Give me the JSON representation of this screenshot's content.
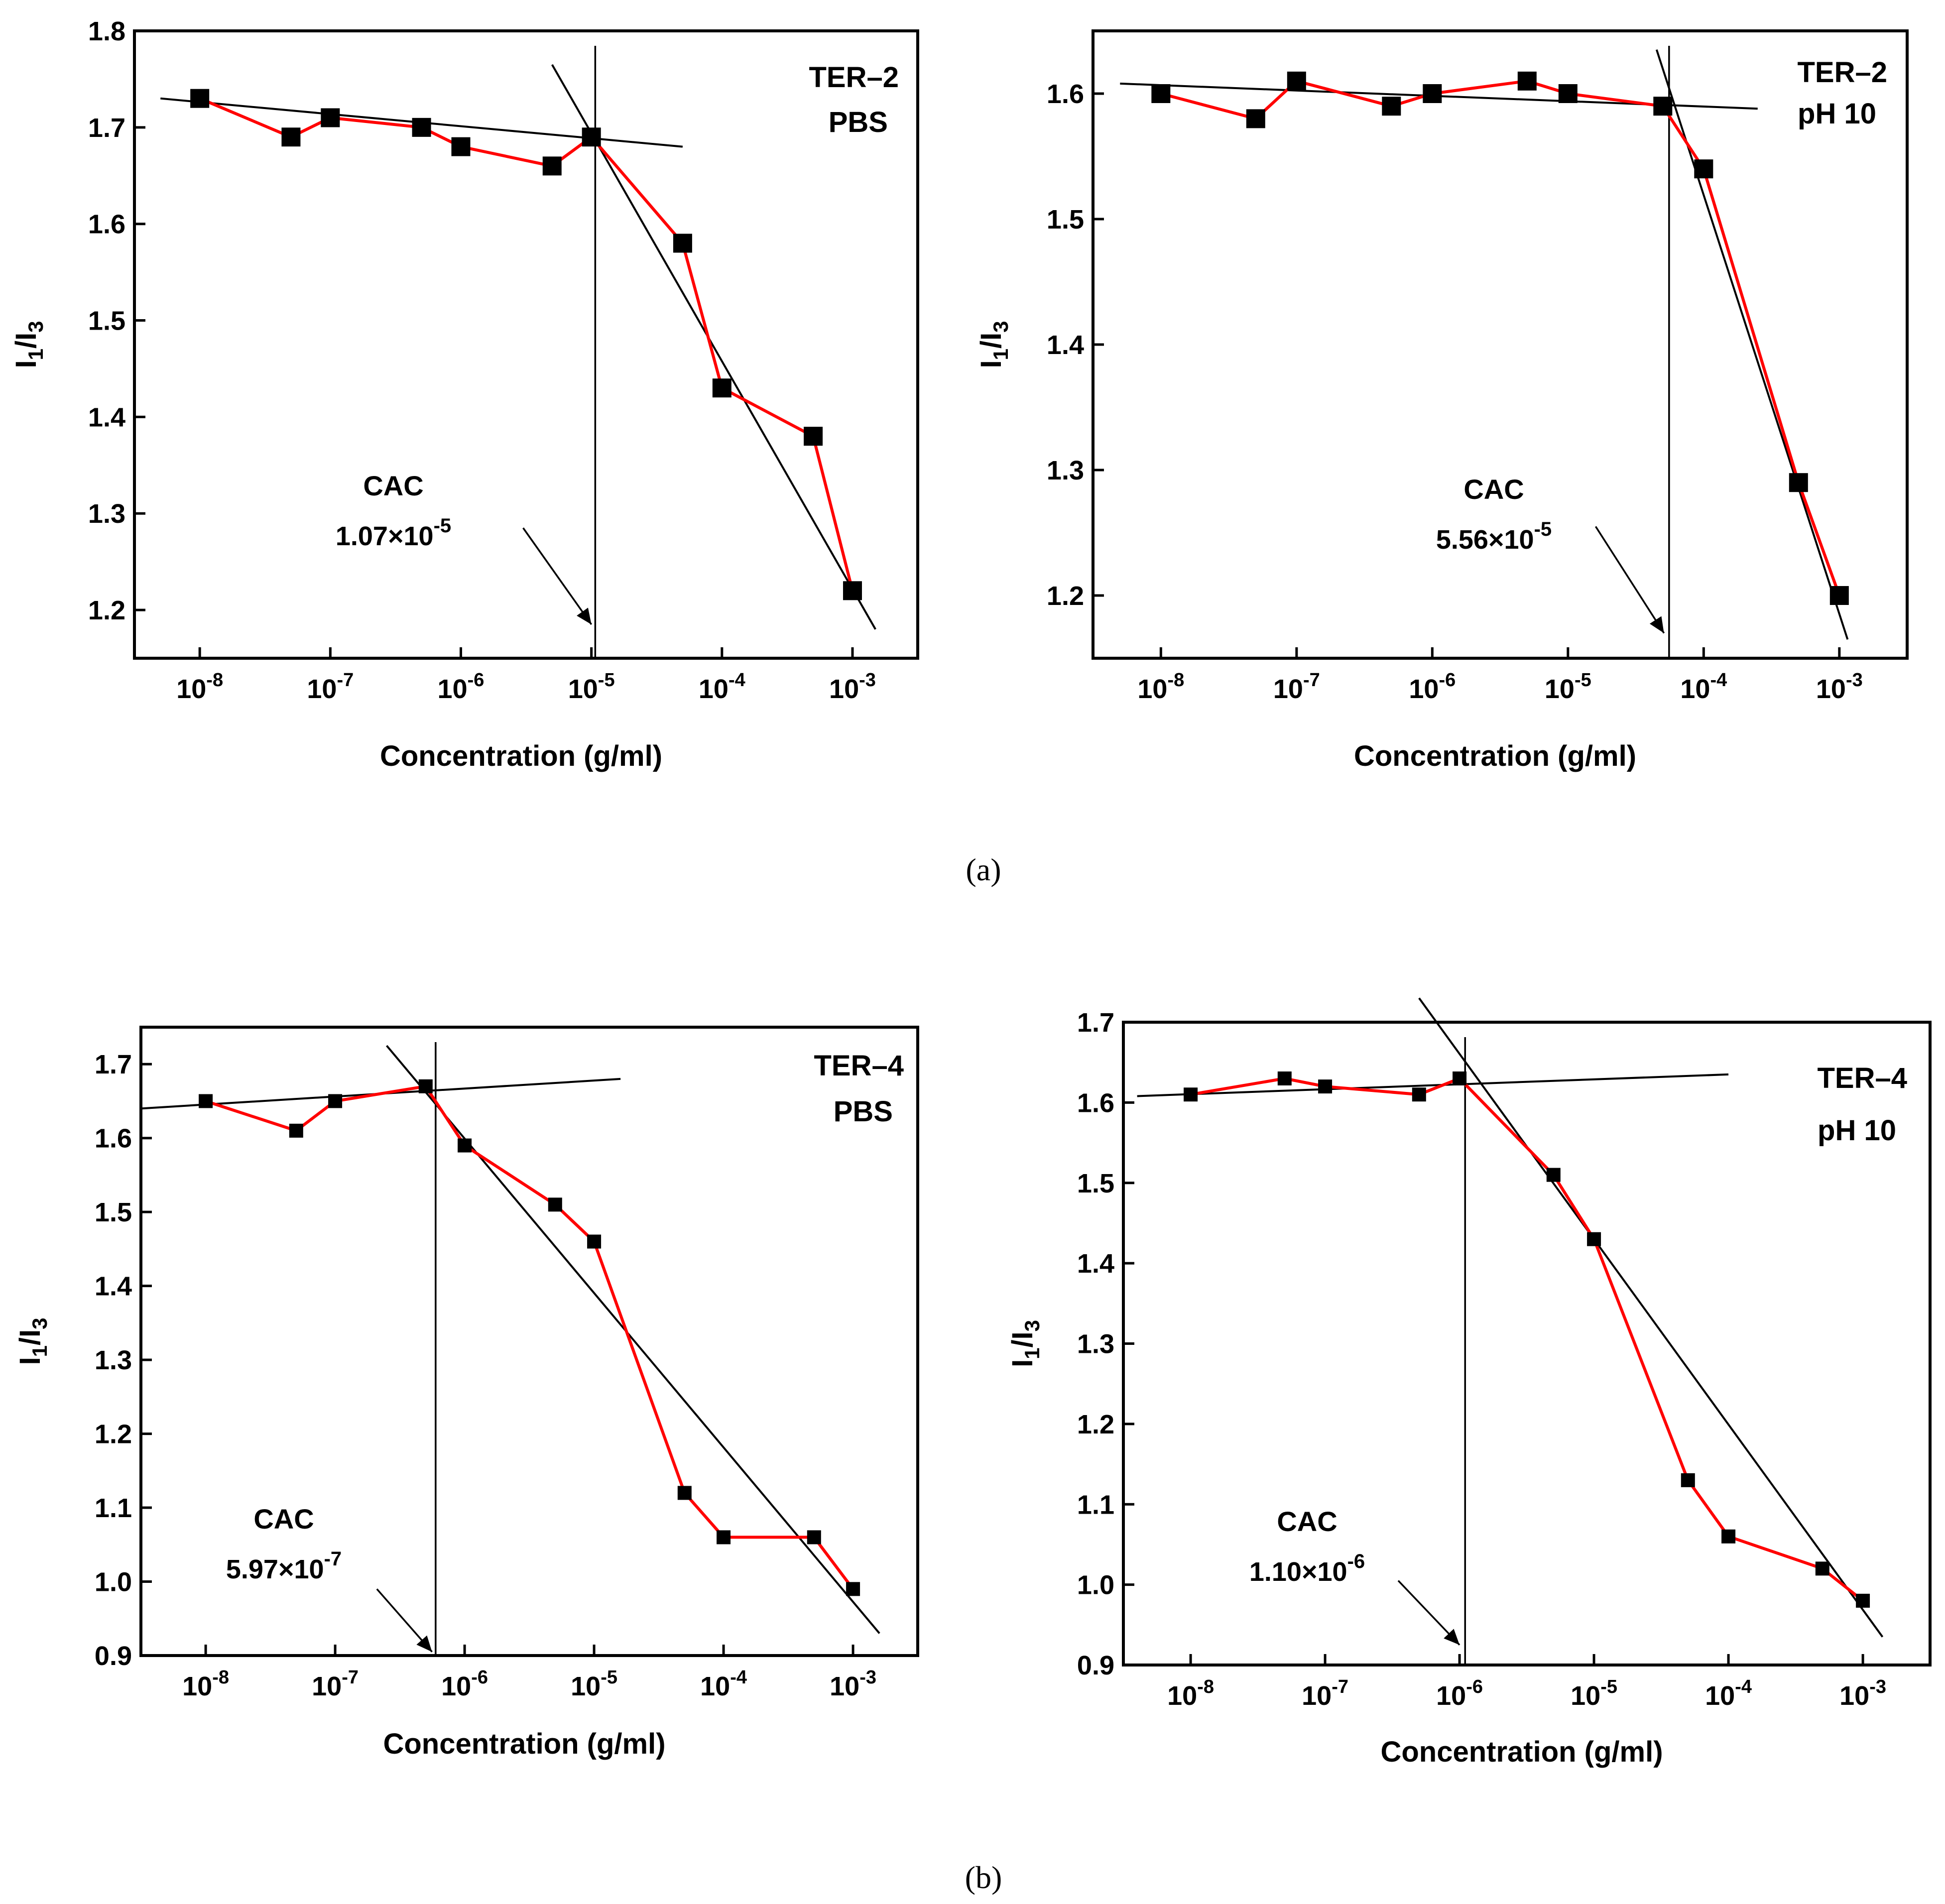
{
  "figure": {
    "caption_a": "(a)",
    "caption_b": "(b)"
  },
  "chart_data": [
    {
      "type": "line",
      "id": "a-left",
      "label_line1": "TER–2",
      "label_line2": "PBS",
      "xlabel": "Concentration (g/ml)",
      "ylabel": "I1/I3",
      "xscale": "log",
      "xlim": [
        3.16e-09,
        0.00316
      ],
      "ylim": [
        1.15,
        1.8
      ],
      "yticks": [
        1.2,
        1.3,
        1.4,
        1.5,
        1.6,
        1.7,
        1.8
      ],
      "ytick_labels": [
        "1.2",
        "1.3",
        "1.4",
        "1.5",
        "1.6",
        "1.7",
        "1.8"
      ],
      "xtick_exponents": [
        -8,
        -7,
        -6,
        -5,
        -4,
        -3
      ],
      "x": [
        1e-08,
        5e-08,
        1e-07,
        5e-07,
        1e-06,
        5e-06,
        1e-05,
        5e-05,
        0.0001,
        0.0005,
        0.001
      ],
      "y": [
        1.73,
        1.69,
        1.71,
        1.7,
        1.68,
        1.66,
        1.69,
        1.58,
        1.43,
        1.38,
        1.22
      ],
      "fit_lines": [
        {
          "x": [
            5e-09,
            5e-05
          ],
          "y": [
            1.73,
            1.68
          ]
        },
        {
          "x": [
            5e-06,
            0.0015
          ],
          "y": [
            1.765,
            1.18
          ]
        }
      ],
      "cac_label": "CAC",
      "cac_mantissa": "1.07×10",
      "cac_exponent": "-5",
      "cac_x": 1.07e-05,
      "arrow_from": {
        "x": 3e-06,
        "y": 1.285
      },
      "arrow_to": {
        "x": 1e-05,
        "y": 1.185
      }
    },
    {
      "type": "line",
      "id": "a-right",
      "label_line1": "TER–2",
      "label_line2": "pH 10",
      "xlabel": "Concentration (g/ml)",
      "ylabel": "I1/I3",
      "xscale": "log",
      "xlim": [
        3.16e-09,
        0.00316
      ],
      "ylim": [
        1.15,
        1.65
      ],
      "yticks": [
        1.2,
        1.3,
        1.4,
        1.5,
        1.6
      ],
      "ytick_labels": [
        "1.2",
        "1.3",
        "1.4",
        "1.5",
        "1.6"
      ],
      "xtick_exponents": [
        -8,
        -7,
        -6,
        -5,
        -4,
        -3
      ],
      "x": [
        1e-08,
        5e-08,
        1e-07,
        5e-07,
        1e-06,
        5e-06,
        1e-05,
        5e-05,
        0.0001,
        0.0005,
        0.001
      ],
      "y": [
        1.6,
        1.58,
        1.61,
        1.59,
        1.6,
        1.61,
        1.6,
        1.59,
        1.54,
        1.29,
        1.2
      ],
      "fit_lines": [
        {
          "x": [
            5e-09,
            0.00025
          ],
          "y": [
            1.608,
            1.588
          ]
        },
        {
          "x": [
            4.5e-05,
            0.00115
          ],
          "y": [
            1.635,
            1.165
          ]
        }
      ],
      "cac_label": "CAC",
      "cac_mantissa": "5.56×10",
      "cac_exponent": "-5",
      "cac_x": 5.56e-05,
      "arrow_from": {
        "x": 1.6e-05,
        "y": 1.255
      },
      "arrow_to": {
        "x": 5.1e-05,
        "y": 1.17
      }
    },
    {
      "type": "line",
      "id": "b-left",
      "label_line1": "TER–4",
      "label_line2": "PBS",
      "xlabel": "Concentration (g/ml)",
      "ylabel": "I1/I3",
      "xscale": "log",
      "xlim": [
        3.16e-09,
        0.00316
      ],
      "ylim": [
        0.9,
        1.75
      ],
      "yticks": [
        0.9,
        1.0,
        1.1,
        1.2,
        1.3,
        1.4,
        1.5,
        1.6,
        1.7
      ],
      "ytick_labels": [
        "0.9",
        "1.0",
        "1.1",
        "1.2",
        "1.3",
        "1.4",
        "1.5",
        "1.6",
        "1.7"
      ],
      "xtick_exponents": [
        -8,
        -7,
        -6,
        -5,
        -4,
        -3
      ],
      "x": [
        1e-08,
        5e-08,
        1e-07,
        5e-07,
        1e-06,
        5e-06,
        1e-05,
        5e-05,
        0.0001,
        0.0005,
        0.001
      ],
      "y": [
        1.65,
        1.61,
        1.65,
        1.67,
        1.59,
        1.51,
        1.46,
        1.12,
        1.06,
        1.06,
        0.99
      ],
      "fit_lines": [
        {
          "x": [
            3.16e-09,
            1.6e-05
          ],
          "y": [
            1.64,
            1.68
          ]
        },
        {
          "x": [
            2.5e-07,
            0.0016
          ],
          "y": [
            1.725,
            0.93
          ]
        }
      ],
      "cac_label": "CAC",
      "cac_mantissa": "5.97×10",
      "cac_exponent": "-7",
      "cac_x": 5.97e-07,
      "arrow_from": {
        "x": 2.1e-07,
        "y": 0.99
      },
      "arrow_to": {
        "x": 5.6e-07,
        "y": 0.905
      }
    },
    {
      "type": "line",
      "id": "b-right",
      "label_line1": "TER–4",
      "label_line2": "pH 10",
      "xlabel": "Concentration (g/ml)",
      "ylabel": "I1/I3",
      "xscale": "log",
      "xlim": [
        3.16e-09,
        0.00316
      ],
      "ylim": [
        0.9,
        1.7
      ],
      "yticks": [
        0.9,
        1.0,
        1.1,
        1.2,
        1.3,
        1.4,
        1.5,
        1.6,
        1.7
      ],
      "ytick_labels": [
        "0.9",
        "1.0",
        "1.1",
        "1.2",
        "1.3",
        "1.4",
        "1.5",
        "1.6",
        "1.7"
      ],
      "xtick_exponents": [
        -8,
        -7,
        -6,
        -5,
        -4,
        -3
      ],
      "x": [
        1e-08,
        5e-08,
        1e-07,
        5e-07,
        1e-06,
        5e-06,
        1e-05,
        5e-05,
        0.0001,
        0.0005,
        0.001
      ],
      "y": [
        1.61,
        1.63,
        1.62,
        1.61,
        1.63,
        1.51,
        1.43,
        1.13,
        1.06,
        1.02,
        0.98
      ],
      "fit_lines": [
        {
          "x": [
            4e-09,
            0.0001
          ],
          "y": [
            1.608,
            1.635
          ]
        },
        {
          "x": [
            5e-07,
            0.0014
          ],
          "y": [
            1.73,
            0.935
          ]
        }
      ],
      "cac_label": "CAC",
      "cac_mantissa": "1.10×10",
      "cac_exponent": "-6",
      "cac_x": 1.1e-06,
      "arrow_from": {
        "x": 3.5e-07,
        "y": 1.005
      },
      "arrow_to": {
        "x": 1e-06,
        "y": 0.925
      }
    }
  ]
}
